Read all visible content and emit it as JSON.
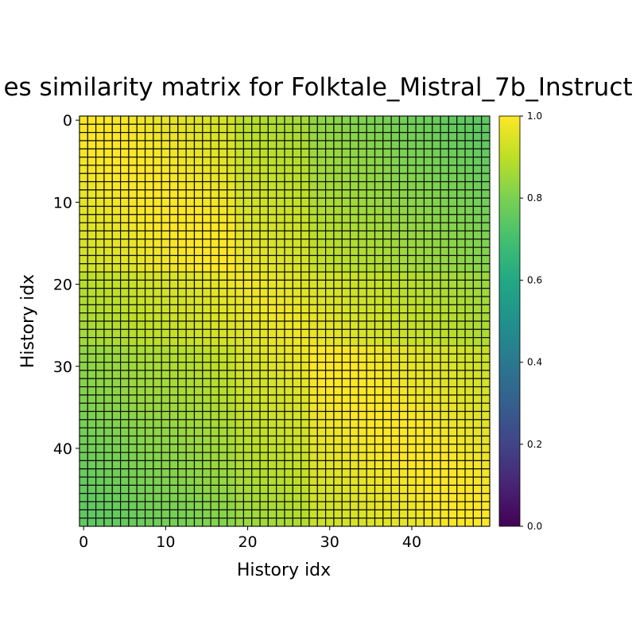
{
  "chart_data": {
    "type": "heatmap",
    "title": "es similarity matrix for Folktale_Mistral_7b_Instruct",
    "xlabel": "History idx",
    "ylabel": "History idx",
    "n": 50,
    "x_ticks": [
      0,
      10,
      20,
      30,
      40
    ],
    "y_ticks": [
      0,
      10,
      20,
      30,
      40
    ],
    "x_tick_labels": [
      "0",
      "10",
      "20",
      "30",
      "40"
    ],
    "y_tick_labels": [
      "0",
      "10",
      "20",
      "30",
      "40"
    ],
    "colorbar": {
      "min": 0.0,
      "max": 1.0,
      "ticks": [
        0.0,
        0.2,
        0.4,
        0.6,
        0.8,
        1.0
      ],
      "tick_labels": [
        "0.0",
        "0.2",
        "0.4",
        "0.6",
        "0.8",
        "1.0"
      ],
      "colormap": "viridis"
    },
    "values_description_model": {
      "diagonal": 0.98,
      "far_off_diagonal_min": 0.75,
      "group_a_end": 18,
      "group_b_start": 28
    }
  }
}
